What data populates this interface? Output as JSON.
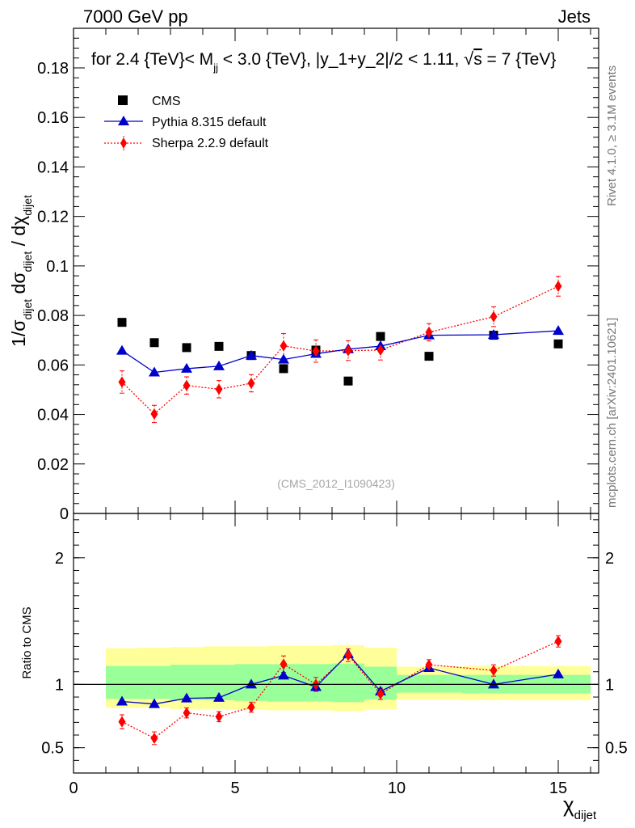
{
  "header": {
    "energy_label": "7000 GeV pp",
    "category_label": "Jets"
  },
  "side_labels": {
    "rivet": "Rivet 4.1.0, ≥ 3.1M events",
    "mcplots": "mcplots.cern.ch [arXiv:2401.10621]"
  },
  "chart_data": {
    "type": "scatter",
    "title": "for 2.4 {TeV}< M_jj < 3.0 {TeV}, |y_1+y_2|/2 < 1.11, √s = 7 {TeV}",
    "title_parts": {
      "prefix": "for 2.4 {TeV}< M",
      "sub": "jj",
      "suffix": " < 3.0 {TeV}, |y_1+y_2|/2 < 1.11, ",
      "sqrt_s": "s",
      "tail": " = 7 {TeV}"
    },
    "watermark": "(CMS_2012_I1090423)",
    "xlabel": "χ",
    "xlabel_sub": "dijet",
    "ylabel": {
      "p1": "1/σ",
      "s1": "dijet",
      "p2": " dσ",
      "s2": "dijet",
      "p3": " / dχ",
      "s3": "dijet"
    },
    "ratio_ylabel": "Ratio to CMS",
    "xlim": [
      0,
      16.25
    ],
    "ylim": [
      0,
      0.196
    ],
    "ratio_ylim": [
      0.3,
      2.35
    ],
    "x_ticks": [
      0,
      5,
      10,
      15
    ],
    "y_ticks": [
      0,
      0.02,
      0.04,
      0.06,
      0.08,
      0.1,
      0.12,
      0.14,
      0.16,
      0.18
    ],
    "y_tick_labels": [
      "0",
      "0.02",
      "0.04",
      "0.06",
      "0.08",
      "0.1",
      "0.12",
      "0.14",
      "0.16",
      "0.18"
    ],
    "ratio_ticks": [
      0.5,
      1,
      2
    ],
    "ratio_tick_labels": [
      "0.5",
      "1",
      "2"
    ],
    "bins": [
      [
        1,
        2
      ],
      [
        2,
        3
      ],
      [
        3,
        4
      ],
      [
        4,
        5
      ],
      [
        5,
        6
      ],
      [
        6,
        7
      ],
      [
        7,
        8
      ],
      [
        8,
        9
      ],
      [
        9,
        10
      ],
      [
        10,
        12
      ],
      [
        12,
        14
      ],
      [
        14,
        16
      ]
    ],
    "band_green": [
      [
        0.885,
        1.145
      ],
      [
        0.885,
        1.145
      ],
      [
        0.875,
        1.155
      ],
      [
        0.875,
        1.155
      ],
      [
        0.87,
        1.16
      ],
      [
        0.865,
        1.16
      ],
      [
        0.865,
        1.16
      ],
      [
        0.86,
        1.165
      ],
      [
        0.88,
        1.14
      ],
      [
        0.935,
        1.075
      ],
      [
        0.93,
        1.075
      ],
      [
        0.93,
        1.075
      ]
    ],
    "band_yellow": [
      [
        0.815,
        1.285
      ],
      [
        0.815,
        1.29
      ],
      [
        0.805,
        1.295
      ],
      [
        0.805,
        1.3
      ],
      [
        0.8,
        1.3
      ],
      [
        0.795,
        1.305
      ],
      [
        0.795,
        1.305
      ],
      [
        0.79,
        1.31
      ],
      [
        0.805,
        1.29
      ],
      [
        0.88,
        1.14
      ],
      [
        0.875,
        1.145
      ],
      [
        0.875,
        1.145
      ]
    ],
    "series": [
      {
        "name": "CMS",
        "color": "#000000",
        "marker": "square",
        "x": [
          1.5,
          2.5,
          3.5,
          4.5,
          5.5,
          6.5,
          7.5,
          8.5,
          9.5,
          11,
          13,
          15
        ],
        "values": [
          0.0772,
          0.069,
          0.067,
          0.0675,
          0.0638,
          0.0585,
          0.066,
          0.0535,
          0.0715,
          0.0635,
          0.072,
          0.0685
        ],
        "ratio": [
          1,
          1,
          1,
          1,
          1,
          1,
          1,
          1,
          1,
          1,
          1,
          1
        ]
      },
      {
        "name": "Pythia 8.315 default",
        "color": "#0000cc",
        "marker": "triangle",
        "line": "solid",
        "x": [
          1.5,
          2.5,
          3.5,
          4.5,
          5.5,
          6.5,
          7.5,
          8.5,
          9.5,
          11,
          13,
          15
        ],
        "values": [
          0.0658,
          0.057,
          0.0585,
          0.0595,
          0.0638,
          0.0622,
          0.0645,
          0.0664,
          0.0676,
          0.072,
          0.0722,
          0.0738
        ],
        "ratio": [
          0.865,
          0.845,
          0.89,
          0.895,
          1.0,
          1.07,
          0.98,
          1.24,
          0.945,
          1.13,
          1.0,
          1.08
        ]
      },
      {
        "name": "Sherpa 2.2.9 default",
        "color": "#ff0000",
        "marker": "diamond",
        "line": "dotted",
        "x": [
          1.5,
          2.5,
          3.5,
          4.5,
          5.5,
          6.5,
          7.5,
          8.5,
          9.5,
          11,
          13,
          15
        ],
        "values": [
          0.0531,
          0.0402,
          0.0517,
          0.0502,
          0.0526,
          0.0677,
          0.0656,
          0.0658,
          0.066,
          0.0732,
          0.0795,
          0.0918
        ],
        "errors": [
          0.0045,
          0.0035,
          0.0035,
          0.0035,
          0.0035,
          0.005,
          0.0045,
          0.004,
          0.004,
          0.0035,
          0.004,
          0.004
        ],
        "ratio": [
          0.705,
          0.575,
          0.775,
          0.745,
          0.82,
          1.16,
          1.0,
          1.23,
          0.925,
          1.155,
          1.11,
          1.34
        ],
        "ratio_errors": [
          0.055,
          0.05,
          0.04,
          0.04,
          0.04,
          0.065,
          0.055,
          0.05,
          0.045,
          0.04,
          0.045,
          0.045
        ]
      }
    ],
    "legend": {
      "position": "top-left"
    }
  }
}
